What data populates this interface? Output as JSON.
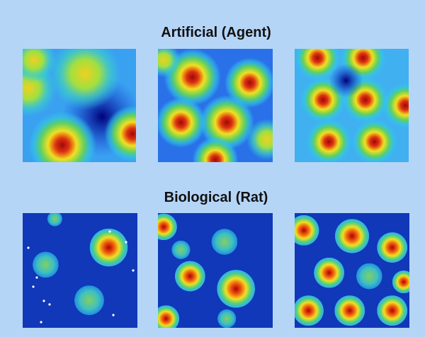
{
  "top_title": "Artificial (Agent)",
  "bottom_title": "Biological (Rat)"
}
